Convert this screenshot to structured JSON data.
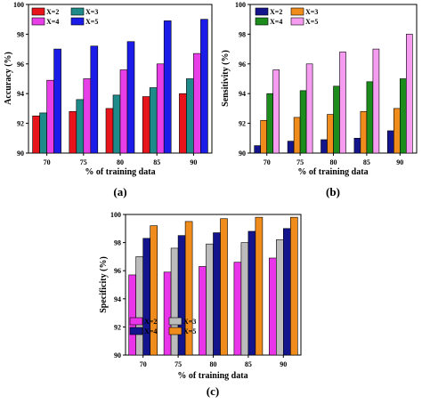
{
  "chart_data": [
    {
      "type": "bar",
      "panel_label": "(a)",
      "categories": [
        "70",
        "75",
        "80",
        "85",
        "90"
      ],
      "xlabel": "% of training data",
      "ylabel": "Accuracy (%)",
      "ylim": [
        90,
        100
      ],
      "yticks": [
        "90",
        "92",
        "94",
        "96",
        "98",
        "100"
      ],
      "legend_position": "top-left",
      "legend_columns": 2,
      "series": [
        {
          "name": "X=2",
          "color": "#e8141c",
          "values": [
            92.5,
            92.8,
            93.0,
            93.8,
            94.0
          ]
        },
        {
          "name": "X=3",
          "color": "#1f8a8a",
          "values": [
            92.7,
            93.6,
            93.9,
            94.4,
            95.0
          ]
        },
        {
          "name": "X=4",
          "color": "#e83ee8",
          "values": [
            94.9,
            95.0,
            95.6,
            96.0,
            96.7
          ]
        },
        {
          "name": "X=5",
          "color": "#1c1ce8",
          "values": [
            97.0,
            97.2,
            97.5,
            98.9,
            99.0
          ]
        }
      ]
    },
    {
      "type": "bar",
      "panel_label": "(b)",
      "categories": [
        "70",
        "75",
        "80",
        "85",
        "90"
      ],
      "xlabel": "% of training data",
      "ylabel": "Sensitivity (%)",
      "ylim": [
        90,
        100
      ],
      "yticks": [
        "90",
        "92",
        "94",
        "96",
        "98",
        "100"
      ],
      "legend_position": "top-left",
      "legend_columns": 2,
      "series": [
        {
          "name": "X=2",
          "color": "#14148c",
          "values": [
            90.5,
            90.8,
            90.9,
            91.0,
            91.5
          ]
        },
        {
          "name": "X=3",
          "color": "#f08c1c",
          "values": [
            92.2,
            92.4,
            92.6,
            92.8,
            93.0
          ]
        },
        {
          "name": "X=4",
          "color": "#1c8c1c",
          "values": [
            94.0,
            94.2,
            94.5,
            94.8,
            95.0
          ]
        },
        {
          "name": "X=5",
          "color": "#f59cf0",
          "values": [
            95.6,
            96.0,
            96.8,
            97.0,
            98.0
          ]
        }
      ]
    },
    {
      "type": "bar",
      "panel_label": "(c)",
      "categories": [
        "70",
        "75",
        "80",
        "85",
        "90"
      ],
      "xlabel": "% of training data",
      "ylabel": "Specificity (%)",
      "ylim": [
        90,
        100
      ],
      "yticks": [
        "90",
        "92",
        "94",
        "96",
        "98",
        "100"
      ],
      "legend_position": "bottom-left",
      "legend_columns": 2,
      "series": [
        {
          "name": "X=2",
          "color": "#ea34ea",
          "values": [
            95.7,
            95.9,
            96.3,
            96.6,
            96.9
          ]
        },
        {
          "name": "X=3",
          "color": "#bcbcbc",
          "values": [
            97.0,
            97.6,
            97.9,
            98.0,
            98.2
          ]
        },
        {
          "name": "X=4",
          "color": "#14148c",
          "values": [
            98.3,
            98.5,
            98.7,
            98.8,
            99.0
          ]
        },
        {
          "name": "X=5",
          "color": "#f08c1c",
          "values": [
            99.2,
            99.5,
            99.7,
            99.8,
            99.8
          ]
        }
      ]
    }
  ]
}
